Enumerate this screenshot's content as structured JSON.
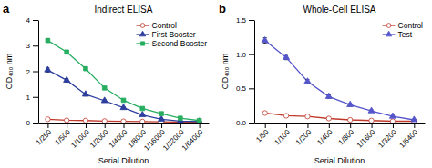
{
  "chart_data": [
    {
      "type": "line",
      "title": "Indirect ELISA",
      "xlabel": "Serial Dilution",
      "ylabel": "OD₄₀₀ nm",
      "annotations": [
        "a"
      ],
      "categories": [
        "1/250",
        "1/500",
        "1/1000",
        "1/2000",
        "1/4000",
        "1/8000",
        "1/16000",
        "1/32000",
        "1/64000"
      ],
      "ylim": [
        0,
        4
      ],
      "yticks": [
        0,
        1,
        2,
        3,
        4
      ],
      "grid": false,
      "legend": "upper-right",
      "series": [
        {
          "name": "Control",
          "color": "#c0392b",
          "marker": "circle-open",
          "values": [
            0.13,
            0.09,
            0.08,
            0.06,
            0.05,
            0.04,
            0.03,
            0.02,
            0.02
          ],
          "errors": [
            0.015,
            0.01,
            0.01,
            0.008,
            0.007,
            0.006,
            0.005,
            0.005,
            0.004
          ]
        },
        {
          "name": "First Booster",
          "color": "#2c3e9e",
          "marker": "triangle",
          "values": [
            2.05,
            1.65,
            1.1,
            0.85,
            0.58,
            0.3,
            0.13,
            0.06,
            0.04
          ],
          "errors": [
            0.08,
            0.07,
            0.06,
            0.05,
            0.04,
            0.03,
            0.02,
            0.01,
            0.01
          ]
        },
        {
          "name": "Second Booster",
          "color": "#27ae60",
          "marker": "square",
          "values": [
            3.2,
            2.75,
            2.1,
            1.35,
            0.87,
            0.55,
            0.35,
            0.17,
            0.08
          ],
          "errors": [
            0.07,
            0.06,
            0.06,
            0.05,
            0.04,
            0.03,
            0.025,
            0.02,
            0.015
          ]
        }
      ]
    },
    {
      "type": "line",
      "title": "Whole-Cell ELISA",
      "xlabel": "Serial Dilution",
      "ylabel": "OD₄₀₀ nm",
      "annotations": [
        "b"
      ],
      "categories": [
        "1/50",
        "1/100",
        "1/200",
        "1/400",
        "1/800",
        "1/1600",
        "1/3200",
        "1/6400"
      ],
      "ylim": [
        0,
        1.5
      ],
      "yticks": [
        {
          "value": 0,
          "label": "0.0"
        },
        0.5,
        {
          "value": 1,
          "label": "1.0"
        },
        1.5
      ],
      "grid": false,
      "legend": "upper-right",
      "series": [
        {
          "name": "Control",
          "color": "#c0392b",
          "marker": "circle-open",
          "values": [
            0.14,
            0.1,
            0.09,
            0.06,
            0.04,
            0.03,
            0.02,
            0.02
          ],
          "errors": [
            0.012,
            0.01,
            0.009,
            0.006,
            0.005,
            0.005,
            0.004,
            0.004
          ]
        },
        {
          "name": "Test",
          "color": "#5555cc",
          "marker": "triangle",
          "values": [
            1.2,
            0.95,
            0.6,
            0.38,
            0.26,
            0.17,
            0.09,
            0.04
          ],
          "errors": [
            0.04,
            0.03,
            0.03,
            0.025,
            0.02,
            0.015,
            0.01,
            0.008
          ]
        }
      ]
    }
  ]
}
